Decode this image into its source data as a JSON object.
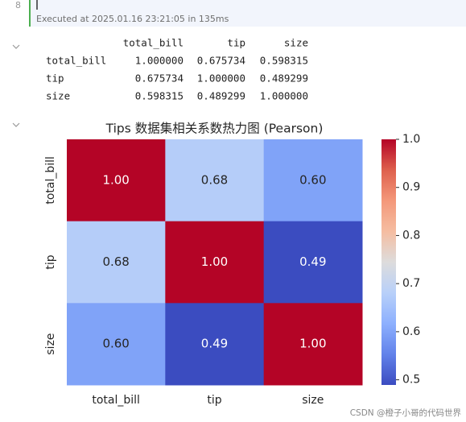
{
  "cell": {
    "line_number": "8",
    "status": "Executed at 2025.01.16 23:21:05 in 135ms"
  },
  "table": {
    "header": [
      "total_bill",
      "tip",
      "size"
    ],
    "rows": [
      [
        "total_bill",
        "1.000000",
        "0.675734",
        "0.598315"
      ],
      [
        "tip",
        "0.675734",
        "1.000000",
        "0.489299"
      ],
      [
        "size",
        "0.598315",
        "0.489299",
        "1.000000"
      ]
    ]
  },
  "chart_data": {
    "type": "heatmap",
    "title": "Tips 数据集相关系数热力图 (Pearson)",
    "x": [
      "total_bill",
      "tip",
      "size"
    ],
    "y": [
      "total_bill",
      "tip",
      "size"
    ],
    "values": [
      [
        1.0,
        0.675734,
        0.598315
      ],
      [
        0.675734,
        1.0,
        0.489299
      ],
      [
        0.598315,
        0.489299,
        1.0
      ]
    ],
    "value_labels": [
      [
        "1.00",
        "0.68",
        "0.60"
      ],
      [
        "0.68",
        "1.00",
        "0.49"
      ],
      [
        "0.60",
        "0.49",
        "1.00"
      ]
    ],
    "colormap": "coolwarm",
    "clim": [
      0.489299,
      1.0
    ],
    "cticks": [
      0.5,
      0.6,
      0.7,
      0.8,
      0.9,
      {
        "value": 1.0,
        "label": "1.0"
      }
    ]
  },
  "watermark": "CSDN @橙子小哥的代码世界"
}
